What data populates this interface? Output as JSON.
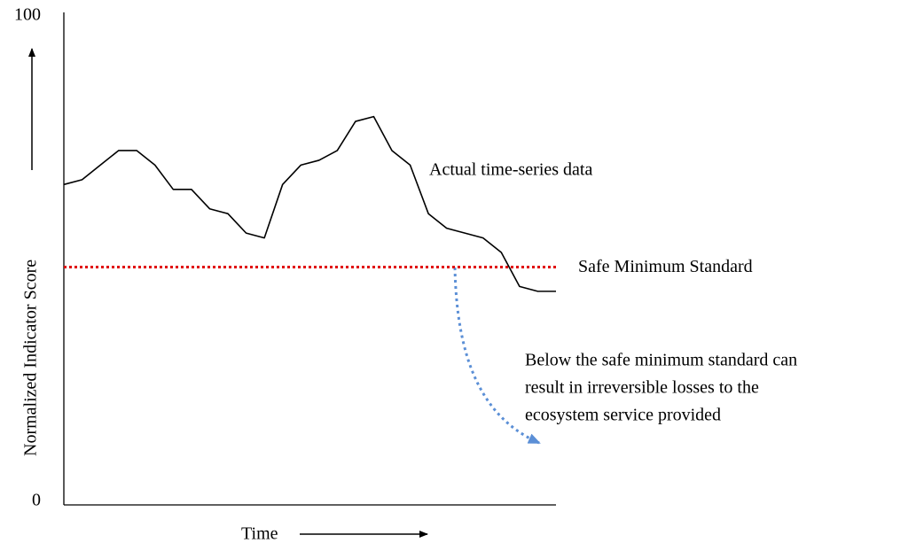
{
  "chart_data": {
    "type": "line",
    "x_label": "Time",
    "y_label": "Normalized Indicator Score",
    "categories": [
      null,
      null,
      null,
      null,
      null,
      null,
      null,
      null,
      null,
      null,
      null,
      null,
      null,
      null,
      null,
      null,
      null,
      null,
      null,
      null,
      null,
      null,
      null,
      null,
      null,
      null,
      null,
      null
    ],
    "values": [
      66,
      67,
      70,
      73,
      73,
      70,
      65,
      65,
      61,
      60,
      56,
      55,
      66,
      70,
      71,
      73,
      79,
      80,
      73,
      70,
      60,
      57,
      56,
      55,
      52,
      45,
      44,
      44
    ],
    "color": "#000000",
    "ylim": [
      0,
      100
    ],
    "yticks": [
      0,
      100
    ],
    "reference_line": {
      "value": 49,
      "label": "Safe Minimum Standard",
      "color": "#e00000"
    },
    "annotations": {
      "series_note": "Actual time-series data",
      "warning": [
        "Below the safe minimum standard can",
        "result in irreversible losses to the",
        "ecosystem service provided"
      ]
    }
  }
}
